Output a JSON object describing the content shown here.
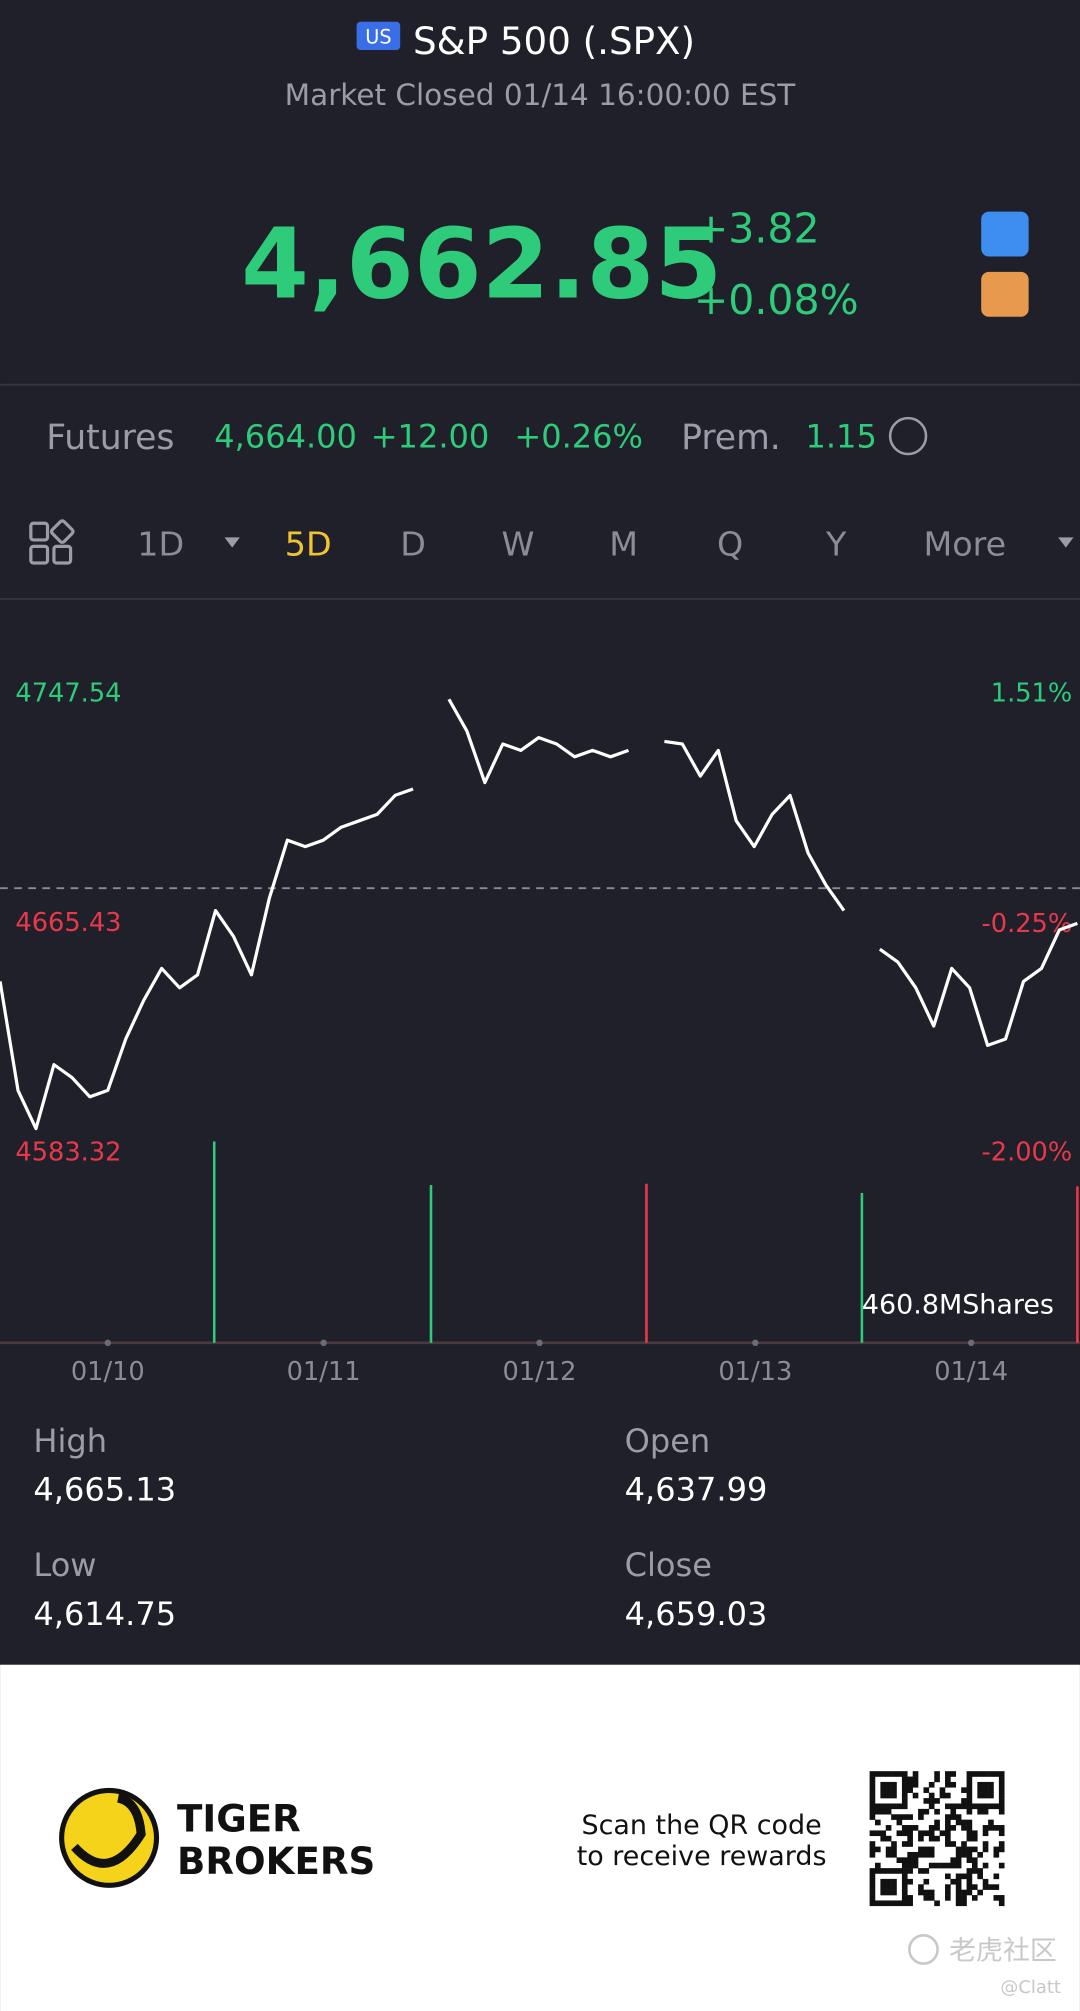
{
  "header": {
    "badge": "US",
    "title": "S&P 500 (.SPX)",
    "status": "Market Closed 01/14 16:00:00 EST"
  },
  "quote": {
    "price": "4,662.85",
    "change": "+3.82",
    "change_percent": "+0.08%"
  },
  "futures": {
    "label": "Futures",
    "price": "4,664.00",
    "change": "+12.00",
    "change_percent": "+0.26%",
    "premium_label": "Prem.",
    "premium": "1.15"
  },
  "tabs": [
    "1D",
    "5D",
    "D",
    "W",
    "M",
    "Q",
    "Y",
    "More"
  ],
  "selected_tab": 1,
  "chart_data": {
    "type": "line",
    "series": [
      {
        "name": "S&P 500",
        "color": "#ffffff",
        "values": [
          4643.8,
          4604.8,
          4591.1,
          4614.0,
          4609.4,
          4602.5,
          4604.8,
          4623.2,
          4637.0,
          4648.4,
          4641.5,
          4646.1,
          4669.1,
          4659.9,
          4646.1,
          4673.6,
          4694.3,
          4692.0,
          4694.3,
          4698.9,
          4701.2,
          4703.5,
          4710.3,
          4712.6,
          null,
          4744.7,
          4733.3,
          4714.9,
          4728.7,
          4726.4,
          4731.0,
          4728.7,
          4724.1,
          4726.4,
          4724.1,
          4726.4,
          null,
          4729.6,
          4728.7,
          4717.2,
          4726.4,
          4701.2,
          4692.0,
          4703.5,
          4710.3,
          4689.7,
          4678.2,
          4669.1,
          null,
          4655.3,
          4650.7,
          4641.5,
          4627.8,
          4648.4,
          4641.5,
          4620.9,
          4623.2,
          4643.8,
          4648.4,
          4662.2,
          4664.5
        ]
      }
    ],
    "reference_line": 4677.1,
    "ylim": [
      4583.32,
      4747.54
    ],
    "yticks": [
      4583.32,
      4665.43,
      4747.54
    ],
    "y2lim": [
      -2.0,
      1.51
    ],
    "y2ticks": [
      {
        "value": -2.0,
        "label": "-2.00%"
      },
      {
        "value": -0.25,
        "label": "-0.25%"
      },
      {
        "value": 1.51,
        "label": "1.51%"
      }
    ],
    "x_labels": [
      "01/10",
      "01/11",
      "01/12",
      "01/13",
      "01/14"
    ],
    "volume": {
      "values": [
        460.8,
        361,
        364,
        343,
        358
      ],
      "colors": [
        "#2ecc7a",
        "#2ecc7a",
        "#e8394c",
        "#2ecc7a",
        "#e8394c"
      ],
      "vlim": [
        0,
        460.8
      ],
      "label": "460.8MShares"
    }
  },
  "stats": [
    {
      "label": "High",
      "value": "4,665.13"
    },
    {
      "label": "Open",
      "value": "4,637.99"
    },
    {
      "label": "Low",
      "value": "4,614.75"
    },
    {
      "label": "Close",
      "value": "4,659.03"
    }
  ],
  "footer": {
    "brand_line1": "TIGER",
    "brand_line2": "BROKERS",
    "scan_line1": "Scan the QR code",
    "scan_line2": "to receive rewards",
    "watermark": "老虎社区",
    "user": "@Clatt"
  }
}
